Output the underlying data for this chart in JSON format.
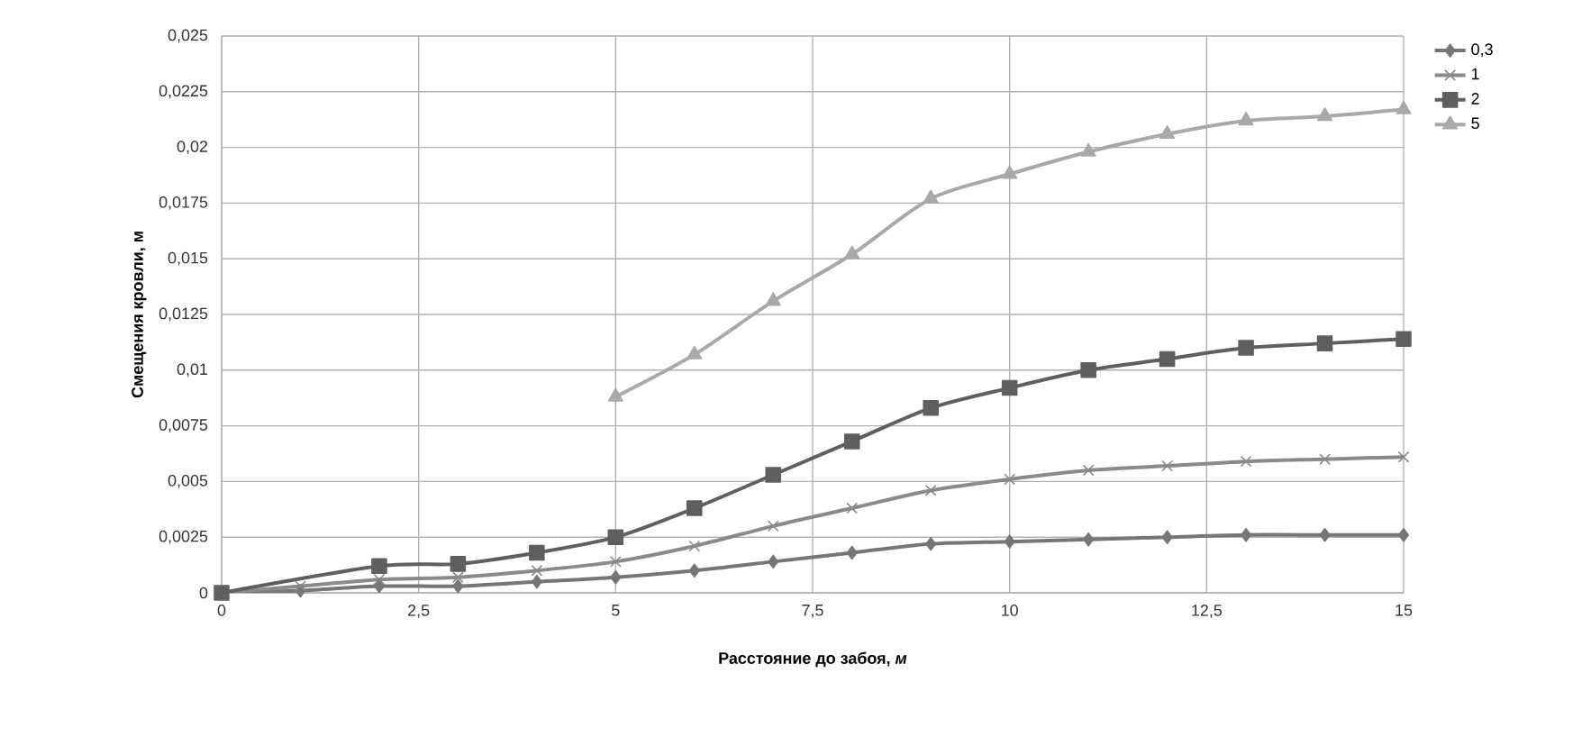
{
  "chart_data": {
    "type": "line",
    "xlabel": "Расстояние до забоя, *м*",
    "ylabel": "Смещения кровли, м",
    "x": [
      0,
      1,
      2,
      3,
      4,
      5,
      6,
      7,
      8,
      9,
      10,
      11,
      12,
      13,
      14,
      15
    ],
    "series": [
      {
        "name": "0,3",
        "color": "#767676",
        "marker": "diamond",
        "values": [
          0,
          0.0001,
          0.0003,
          0.0003,
          0.0005,
          0.0007,
          0.001,
          0.0014,
          0.0018,
          0.0022,
          0.0023,
          0.0024,
          0.0025,
          0.0026,
          0.0026,
          0.0026
        ]
      },
      {
        "name": "1",
        "color": "#8a8a8a",
        "marker": "cross",
        "values": [
          0,
          0.0003,
          0.0006,
          0.0007,
          0.001,
          0.0014,
          0.0021,
          0.003,
          0.0038,
          0.0046,
          0.0051,
          0.0055,
          0.0057,
          0.0059,
          0.006,
          0.0061
        ]
      },
      {
        "name": "2",
        "color": "#5f5f5f",
        "marker": "square",
        "values": [
          0,
          null,
          0.0012,
          0.0013,
          0.0018,
          0.0025,
          0.0038,
          0.0053,
          0.0068,
          0.0083,
          0.0092,
          0.01,
          0.0105,
          0.011,
          0.0112,
          0.0114
        ]
      },
      {
        "name": "5",
        "color": "#a9a9a9",
        "marker": "triangle",
        "values": [
          null,
          null,
          null,
          null,
          null,
          0.0088,
          0.0107,
          0.0131,
          0.0152,
          0.0177,
          0.0188,
          0.0198,
          0.0206,
          0.0212,
          0.0214,
          0.0217
        ]
      }
    ],
    "xlim": [
      0,
      15
    ],
    "ylim": [
      0,
      0.025
    ],
    "xticks": [
      0,
      {
        "value": 2.5,
        "label": "2,5"
      },
      5,
      {
        "value": 7.5,
        "label": "7,5"
      },
      10,
      {
        "value": 12.5,
        "label": "12,5"
      },
      15
    ],
    "yticks": [
      0,
      {
        "value": 0.0025,
        "label": "0,0025"
      },
      {
        "value": 0.005,
        "label": "0,005"
      },
      {
        "value": 0.0075,
        "label": "0,0075"
      },
      {
        "value": 0.01,
        "label": "0,01"
      },
      {
        "value": 0.0125,
        "label": "0,0125"
      },
      {
        "value": 0.015,
        "label": "0,015"
      },
      {
        "value": 0.0175,
        "label": "0,0175"
      },
      {
        "value": 0.02,
        "label": "0,02"
      },
      {
        "value": 0.0225,
        "label": "0,0225"
      },
      {
        "value": 0.025,
        "label": "0,025"
      }
    ],
    "grid": true,
    "legend": "right",
    "line_style": "solid"
  }
}
